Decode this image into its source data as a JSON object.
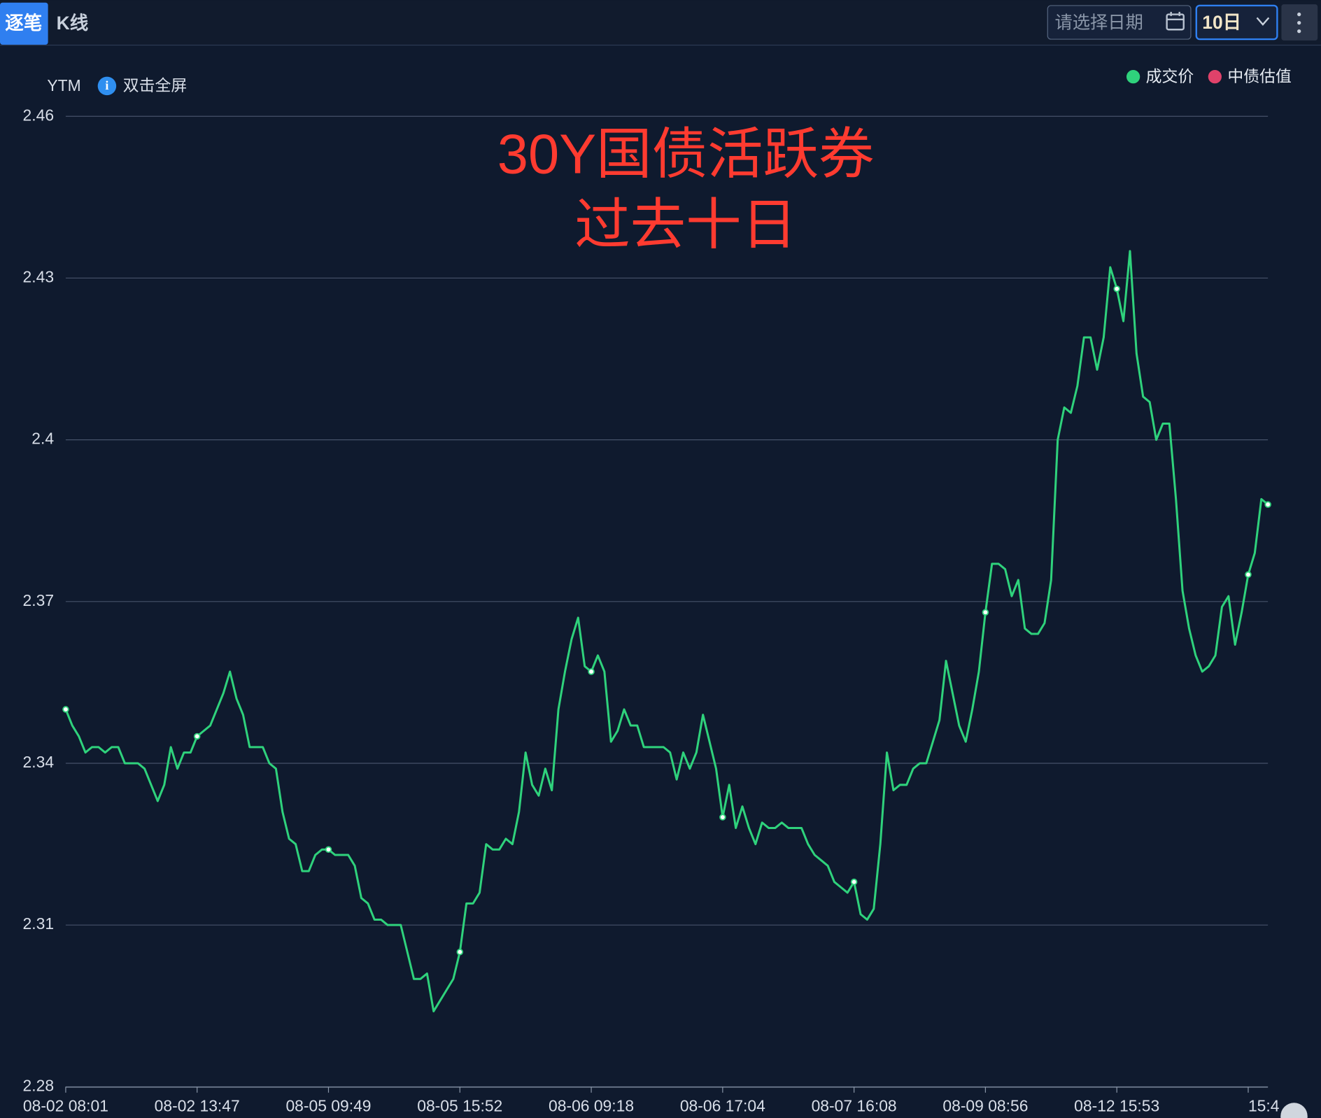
{
  "toolbar": {
    "tabs": [
      "逐笔",
      "K线"
    ],
    "date_placeholder": "请选择日期",
    "period": "10日"
  },
  "chart_data": {
    "type": "line",
    "y_label": "YTM",
    "hint": "双击全屏",
    "annotation": [
      "30Y国债活跃券",
      "过去十日"
    ],
    "legend_position": "top-right",
    "grid": true,
    "ylim": [
      2.28,
      2.46
    ],
    "yticks": [
      2.28,
      2.31,
      2.34,
      2.37,
      2.4,
      2.43,
      2.46
    ],
    "categories": [
      "08-02 08:01",
      null,
      null,
      null,
      null,
      null,
      null,
      null,
      null,
      null,
      null,
      null,
      null,
      null,
      null,
      null,
      null,
      null,
      null,
      null,
      "08-02 13:47",
      null,
      null,
      null,
      null,
      null,
      null,
      null,
      null,
      null,
      null,
      null,
      null,
      null,
      null,
      null,
      null,
      null,
      null,
      null,
      "08-05 09:49",
      null,
      null,
      null,
      null,
      null,
      null,
      null,
      null,
      null,
      null,
      null,
      null,
      null,
      null,
      null,
      null,
      null,
      null,
      null,
      "08-05 15:52",
      null,
      null,
      null,
      null,
      null,
      null,
      null,
      null,
      null,
      null,
      null,
      null,
      null,
      null,
      null,
      null,
      null,
      null,
      null,
      "08-06 09:18",
      null,
      null,
      null,
      null,
      null,
      null,
      null,
      null,
      null,
      null,
      null,
      null,
      null,
      null,
      null,
      null,
      null,
      null,
      null,
      "08-06 17:04",
      null,
      null,
      null,
      null,
      null,
      null,
      null,
      null,
      null,
      null,
      null,
      null,
      null,
      null,
      null,
      null,
      null,
      null,
      null,
      "08-07 16:08",
      null,
      null,
      null,
      null,
      null,
      null,
      null,
      null,
      null,
      null,
      null,
      null,
      null,
      null,
      null,
      null,
      null,
      null,
      null,
      "08-09 08:56",
      null,
      null,
      null,
      null,
      null,
      null,
      null,
      null,
      null,
      null,
      null,
      null,
      null,
      null,
      null,
      null,
      null,
      null,
      null,
      "08-12 15:53",
      null,
      null,
      null,
      null,
      null,
      null,
      null,
      null,
      null,
      null,
      null,
      null,
      null,
      null,
      null,
      null,
      null,
      null,
      null,
      "15:4",
      null,
      null,
      null
    ],
    "series": [
      {
        "name": "成交价",
        "color": "#2fd27c",
        "values": [
          2.35,
          2.347,
          2.345,
          2.342,
          2.343,
          2.343,
          2.342,
          2.343,
          2.343,
          2.34,
          2.34,
          2.34,
          2.339,
          2.336,
          2.333,
          2.336,
          2.343,
          2.339,
          2.342,
          2.342,
          2.345,
          2.346,
          2.347,
          2.35,
          2.353,
          2.357,
          2.352,
          2.349,
          2.343,
          2.343,
          2.343,
          2.34,
          2.339,
          2.331,
          2.326,
          2.325,
          2.32,
          2.32,
          2.323,
          2.324,
          2.324,
          2.323,
          2.323,
          2.323,
          2.321,
          2.315,
          2.314,
          2.311,
          2.311,
          2.31,
          2.31,
          2.31,
          2.305,
          2.3,
          2.3,
          2.301,
          2.294,
          2.296,
          2.298,
          2.3,
          2.305,
          2.314,
          2.314,
          2.316,
          2.325,
          2.324,
          2.324,
          2.326,
          2.325,
          2.331,
          2.342,
          2.336,
          2.334,
          2.339,
          2.335,
          2.35,
          2.357,
          2.363,
          2.367,
          2.358,
          2.357,
          2.36,
          2.357,
          2.344,
          2.346,
          2.35,
          2.347,
          2.347,
          2.343,
          2.343,
          2.343,
          2.343,
          2.342,
          2.337,
          2.342,
          2.339,
          2.342,
          2.349,
          2.344,
          2.339,
          2.33,
          2.336,
          2.328,
          2.332,
          2.328,
          2.325,
          2.329,
          2.328,
          2.328,
          2.329,
          2.328,
          2.328,
          2.328,
          2.325,
          2.323,
          2.322,
          2.321,
          2.318,
          2.317,
          2.316,
          2.318,
          2.312,
          2.311,
          2.313,
          2.325,
          2.342,
          2.335,
          2.336,
          2.336,
          2.339,
          2.34,
          2.34,
          2.344,
          2.348,
          2.359,
          2.353,
          2.347,
          2.344,
          2.35,
          2.357,
          2.368,
          2.377,
          2.377,
          2.376,
          2.371,
          2.374,
          2.365,
          2.364,
          2.364,
          2.366,
          2.374,
          2.4,
          2.406,
          2.405,
          2.41,
          2.419,
          2.419,
          2.413,
          2.419,
          2.432,
          2.428,
          2.422,
          2.435,
          2.416,
          2.408,
          2.407,
          2.4,
          2.403,
          2.403,
          2.389,
          2.372,
          2.365,
          2.36,
          2.357,
          2.358,
          2.36,
          2.369,
          2.371,
          2.362,
          2.368,
          2.375,
          2.379,
          2.389,
          2.388
        ]
      },
      {
        "name": "中债估值",
        "color": "#e0426a"
      }
    ]
  }
}
